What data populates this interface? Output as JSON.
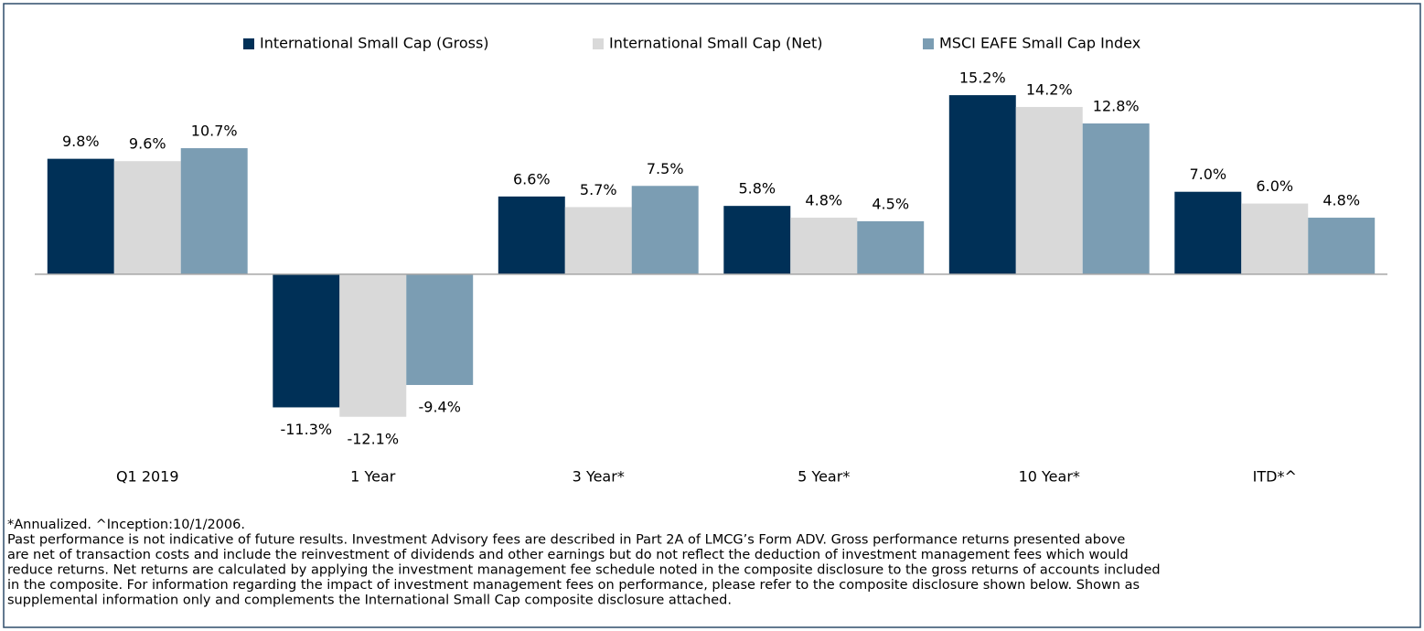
{
  "chart_data": {
    "type": "bar",
    "categories": [
      "Q1 2019",
      "1 Year",
      "3 Year*",
      "5 Year*",
      "10 Year*",
      "ITD*^"
    ],
    "series": [
      {
        "name": "International Small Cap (Gross)",
        "color": "#003057",
        "values": [
          9.8,
          -11.3,
          6.6,
          5.8,
          15.2,
          7.0
        ],
        "value_labels": [
          "9.8%",
          "-11.3%",
          "6.6%",
          "5.8%",
          "15.2%",
          "7.0%"
        ]
      },
      {
        "name": "International Small Cap (Net)",
        "color": "#d9d9d9",
        "values": [
          9.6,
          -12.1,
          5.7,
          4.8,
          14.2,
          6.0
        ],
        "value_labels": [
          "9.6%",
          "-12.1%",
          "5.7%",
          "4.8%",
          "14.2%",
          "6.0%"
        ]
      },
      {
        "name": "MSCI EAFE Small Cap Index",
        "color": "#7b9db3",
        "values": [
          10.7,
          -9.4,
          7.5,
          4.5,
          12.8,
          4.8
        ],
        "value_labels": [
          "10.7%",
          "-9.4%",
          "7.5%",
          "4.5%",
          "12.8%",
          "4.8%"
        ]
      }
    ],
    "ylim": [
      -16,
      18
    ],
    "legend": "top",
    "footnotes": [
      "*Annualized.  ^Inception:10/1/2006.",
      "Past performance is not indicative of future results. Investment Advisory fees are described in Part 2A of LMCG’s Form ADV. Gross performance returns presented above",
      "are net of transaction costs and include the reinvestment of dividends and other earnings but do not reflect the deduction of investment management fees which would",
      "reduce returns. Net returns are calculated by applying the investment management fee schedule noted in the composite disclosure to the gross returns of accounts included",
      "in the composite. For information regarding the impact of investment management fees on performance, please refer to the composite disclosure shown below. Shown as",
      "supplemental information only and complements the International Small Cap composite disclosure attached."
    ]
  }
}
